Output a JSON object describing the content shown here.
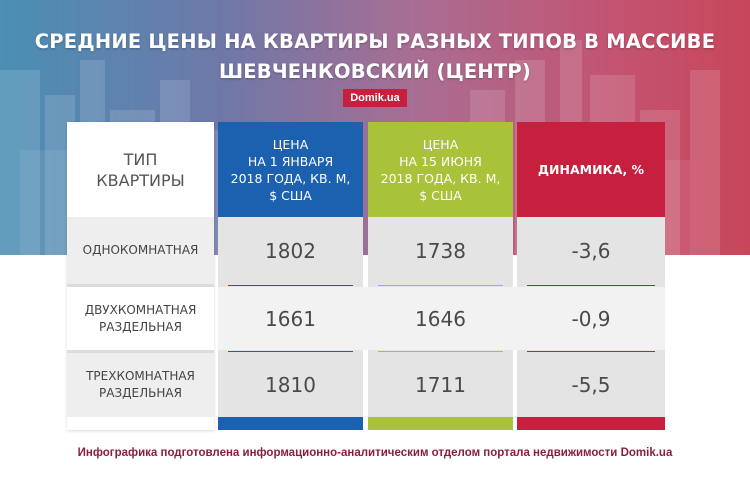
{
  "title_line1": "СРЕДНИЕ ЦЕНЫ НА КВАРТИРЫ РАЗНЫХ ТИПОВ В МАССИВЕ",
  "title_line2": "ШЕВЧЕНКОВСКИЙ (ЦЕНТР)",
  "brand": "Domik.ua",
  "footer": "Инфографика подготовлена информационно-аналитическим отделом портала недвижимости Domik.ua",
  "colors": {
    "blue": "#1c60b0",
    "green": "#a8c23a",
    "red": "#c6203e",
    "grey": "#e4e4e4"
  },
  "chart_data": {
    "type": "table",
    "columns": [
      {
        "key": "type",
        "header": [
          "ТИП",
          "КВАРТИРЫ"
        ]
      },
      {
        "key": "jan",
        "header": [
          "ЦЕНА",
          "НА 1 ЯНВАРЯ",
          "2018 ГОДА, КВ. М,",
          "$ США"
        ]
      },
      {
        "key": "jun",
        "header": [
          "ЦЕНА",
          "НА 15 ИЮНЯ",
          "2018 ГОДА, КВ. М,",
          "$ США"
        ]
      },
      {
        "key": "dyn",
        "header": [
          "ДИНАМИКА, %"
        ]
      }
    ],
    "rows": [
      {
        "type": [
          "ОДНОКОМНАТНАЯ"
        ],
        "jan": "1802",
        "jun": "1738",
        "dyn": "-3,6"
      },
      {
        "type": [
          "ДВУХКОМНАТНАЯ",
          "РАЗДЕЛЬНАЯ"
        ],
        "jan": "1661",
        "jun": "1646",
        "dyn": "-0,9"
      },
      {
        "type": [
          "ТРЕХКОМНАТНАЯ",
          "РАЗДЕЛЬНАЯ"
        ],
        "jan": "1810",
        "jun": "1711",
        "dyn": "-5,5"
      }
    ]
  }
}
